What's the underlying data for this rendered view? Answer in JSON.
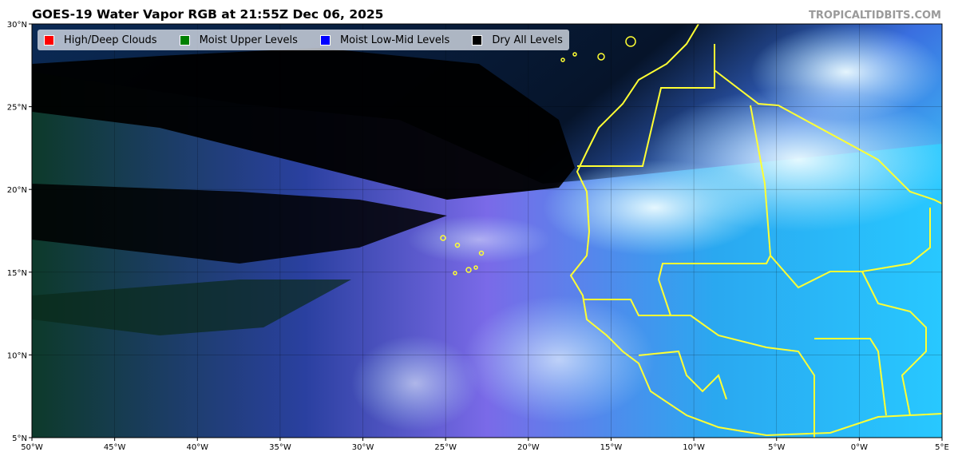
{
  "title": "GOES-19 Water Vapor RGB at 21:55Z Dec 06, 2025",
  "credit": "TROPICALTIDBITS.COM",
  "legend": [
    {
      "label": "High/Deep Clouds",
      "color": "#ff0000"
    },
    {
      "label": "Moist Upper Levels",
      "color": "#008000"
    },
    {
      "label": "Moist Low-Mid Levels",
      "color": "#0000ff"
    },
    {
      "label": "Dry All Levels",
      "color": "#000000"
    }
  ],
  "map": {
    "lon_range": [
      -50,
      5
    ],
    "lat_range": [
      5,
      30
    ],
    "x_ticks": [
      "50°W",
      "45°W",
      "40°W",
      "35°W",
      "30°W",
      "25°W",
      "20°W",
      "15°W",
      "10°W",
      "5°W",
      "0°W",
      "5°E"
    ],
    "y_ticks": [
      "30°N",
      "25°N",
      "20°N",
      "15°N",
      "10°N",
      "5°N"
    ],
    "border_color": "#ffff00",
    "grid": true
  }
}
